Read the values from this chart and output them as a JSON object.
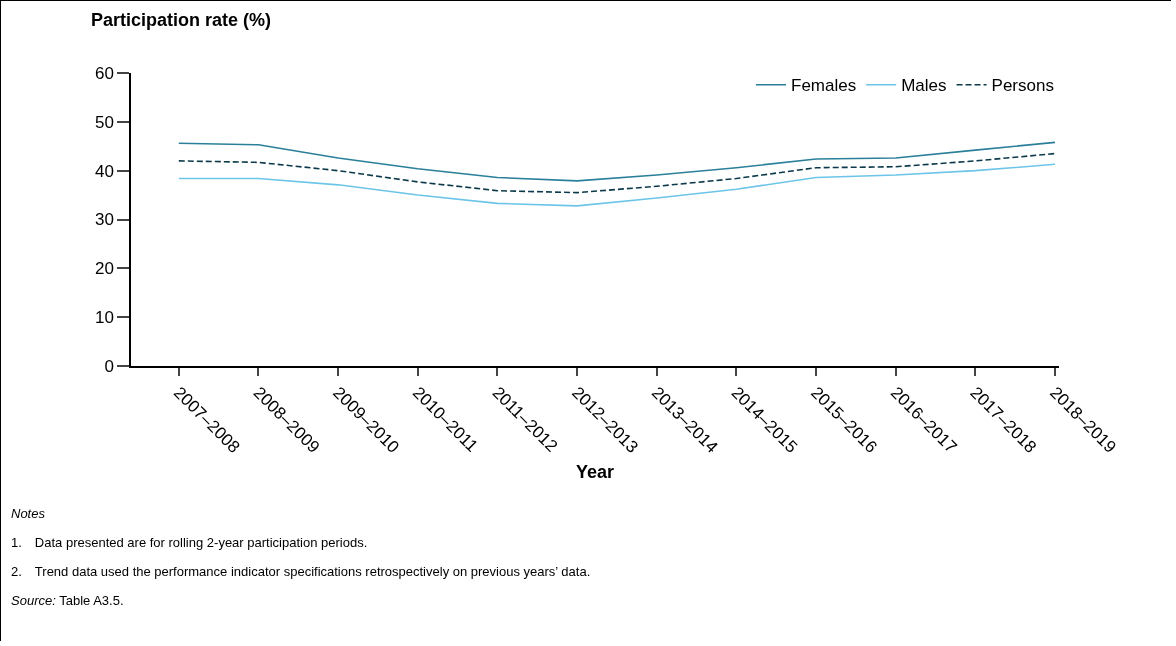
{
  "chart_data": {
    "type": "line",
    "ylabel": "Participation rate (%)",
    "xlabel": "Year",
    "categories": [
      "2007–2008",
      "2008–2009",
      "2009–2010",
      "2010–2011",
      "2011–2012",
      "2012–2013",
      "2013–2014",
      "2014–2015",
      "2015–2016",
      "2016–2017",
      "2017–2018",
      "2018–2019"
    ],
    "series": [
      {
        "name": "Females",
        "color": "#2a7f9a",
        "line_style": "solid",
        "values": [
          45.6,
          45.3,
          42.6,
          40.4,
          38.6,
          37.9,
          39.1,
          40.6,
          42.4,
          42.6,
          44.2,
          45.8
        ]
      },
      {
        "name": "Males",
        "color": "#6cc5e8",
        "line_style": "solid",
        "values": [
          38.4,
          38.4,
          37.1,
          35.0,
          33.3,
          32.8,
          34.4,
          36.2,
          38.6,
          39.1,
          40.0,
          41.3
        ]
      },
      {
        "name": "Persons",
        "color": "#0d3a4a",
        "line_style": "dashed",
        "values": [
          42.0,
          41.7,
          40.0,
          37.7,
          35.9,
          35.5,
          36.8,
          38.4,
          40.6,
          40.8,
          42.0,
          43.5
        ]
      }
    ],
    "ylim": [
      0,
      60
    ],
    "yticks": [
      0,
      10,
      20,
      30,
      40,
      50,
      60
    ],
    "grid": false,
    "legend": "top right",
    "marker": "none",
    "annotations": [
      "Notes",
      "1. Data presented are for rolling 2-year participation periods.",
      "2. Trend data used the performance indicator specifications retrospectively on previous years’ data.",
      "Source: Table A3.5."
    ]
  }
}
